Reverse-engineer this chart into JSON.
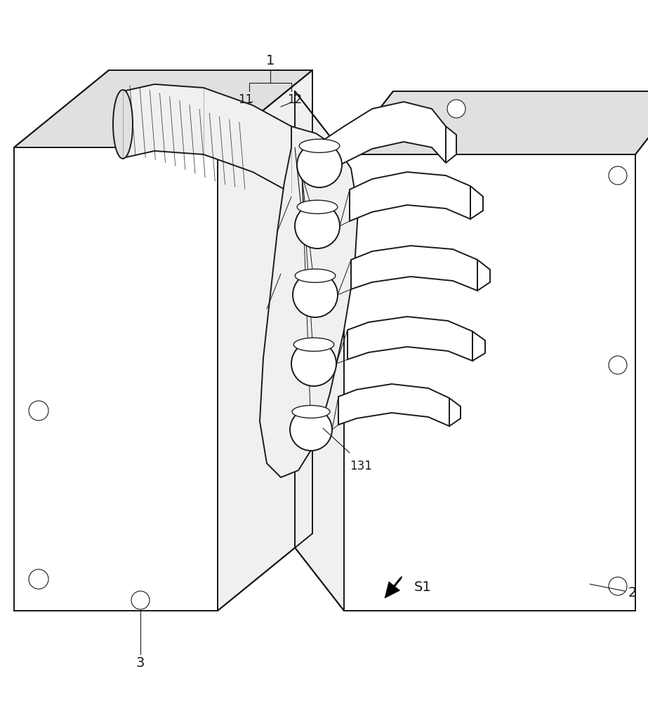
{
  "bg_color": "#ffffff",
  "line_color": "#1a1a1a",
  "face_white": "#ffffff",
  "face_light": "#f0f0f0",
  "face_mid": "#e0e0e0",
  "face_dark": "#d0d0d0",
  "lw_main": 1.4,
  "lw_thin": 0.8,
  "lw_thick": 2.0,
  "label_fs": 14,
  "annot_fs": 12
}
